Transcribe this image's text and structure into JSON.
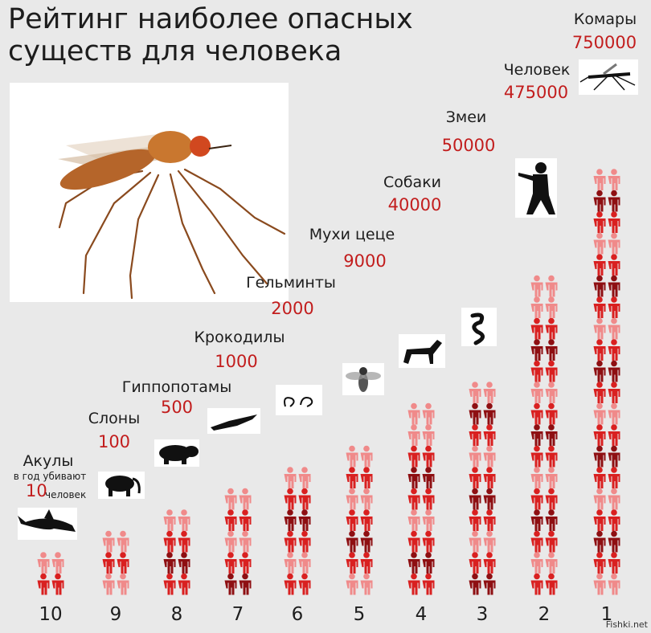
{
  "title": "Рейтинг наиболее опасных существ для человека",
  "subtitle_prefix": "в год убивают",
  "subtitle_suffix": "человек",
  "credit": "Fishki.net",
  "chart_data": {
    "type": "bar",
    "title": "Рейтинг наиболее опасных существ для человека",
    "unit_note": "в год убивают … человек",
    "categories": [
      "Акулы",
      "Слоны",
      "Гиппопотамы",
      "Крокодилы",
      "Гельминты",
      "Мухи цеце",
      "Собаки",
      "Змеи",
      "Человек",
      "Комары"
    ],
    "values": [
      10,
      100,
      500,
      1000,
      2000,
      9000,
      40000,
      50000,
      475000,
      750000
    ],
    "value_labels": [
      "10",
      "100",
      "500",
      "1000",
      "2000",
      "9000",
      "40000",
      "50000",
      "475000",
      "750000"
    ],
    "ranks": [
      "10",
      "9",
      "8",
      "7",
      "6",
      "5",
      "4",
      "3",
      "2",
      "1"
    ],
    "icons": [
      "shark-icon",
      "elephant-icon",
      "hippo-icon",
      "crocodile-icon",
      "worm-icon",
      "tsetse-fly-icon",
      "dog-icon",
      "snake-icon",
      "gunman-icon",
      "mosquito-icon"
    ],
    "figure_rows": [
      2,
      3,
      4,
      5,
      6,
      7,
      9,
      10,
      15,
      20
    ],
    "colors": {
      "red": "#d92020",
      "light_red": "#f08a8a",
      "dark_red": "#8e0f12",
      "value_text": "#c21d1d"
    }
  }
}
